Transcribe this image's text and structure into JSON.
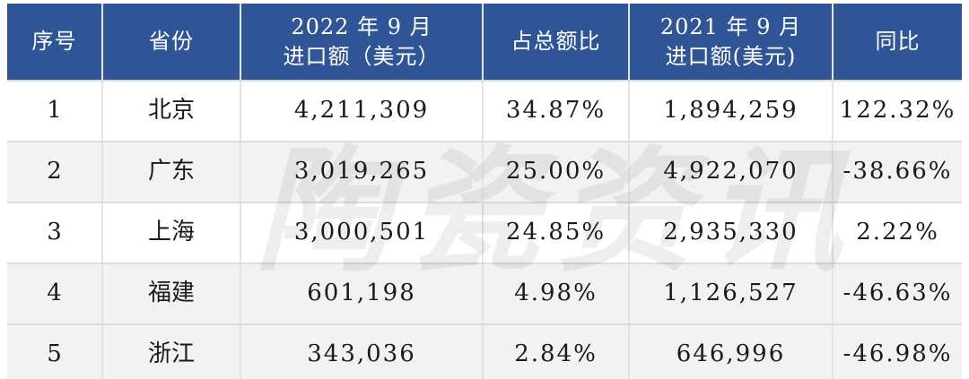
{
  "table": {
    "header": [
      {
        "label": "序号"
      },
      {
        "label": "省份"
      },
      {
        "line1": "2022 年 9 月",
        "line2": "进口额（美元）"
      },
      {
        "label": "占总额比"
      },
      {
        "line1": "2021 年 9 月",
        "line2": "进口额(美元)"
      },
      {
        "label": "同比"
      }
    ],
    "rows": [
      {
        "serial": "1",
        "province": "北京",
        "import_2022": "4,211,309",
        "share": "34.87%",
        "import_2021": "1,894,259",
        "yoy": "122.32%"
      },
      {
        "serial": "2",
        "province": "广东",
        "import_2022": "3,019,265",
        "share": "25.00%",
        "import_2021": "4,922,070",
        "yoy": "-38.66%"
      },
      {
        "serial": "3",
        "province": "上海",
        "import_2022": "3,000,501",
        "share": "24.85%",
        "import_2021": "2,935,330",
        "yoy": "2.22%"
      },
      {
        "serial": "4",
        "province": "福建",
        "import_2022": "601,198",
        "share": "4.98%",
        "import_2021": "1,126,527",
        "yoy": "-46.63%"
      },
      {
        "serial": "5",
        "province": "浙江",
        "import_2022": "343,036",
        "share": "2.84%",
        "import_2021": "646,996",
        "yoy": "-46.98%"
      }
    ]
  },
  "watermark": {
    "text": "陶瓷资讯"
  },
  "colors": {
    "header_bg": "#2F5597",
    "header_text": "#FFFFFF",
    "row_alt_bg": "#F2F2F2",
    "body_text": "#1A1A1A",
    "grid_line": "#DCDCDC",
    "bottom_border": "#8C8C8C"
  },
  "chart_data": {
    "type": "table",
    "title": "",
    "columns": [
      "序号",
      "省份",
      "2022年9月进口额（美元）",
      "占总额比",
      "2021年9月进口额(美元)",
      "同比"
    ],
    "rows": [
      [
        1,
        "北京",
        4211309,
        "34.87%",
        1894259,
        "122.32%"
      ],
      [
        2,
        "广东",
        3019265,
        "25.00%",
        4922070,
        "-38.66%"
      ],
      [
        3,
        "上海",
        3000501,
        "24.85%",
        2935330,
        "2.22%"
      ],
      [
        4,
        "福建",
        601198,
        "4.98%",
        1126527,
        "-46.63%"
      ],
      [
        5,
        "浙江",
        343036,
        "2.84%",
        646996,
        "-46.98%"
      ]
    ]
  }
}
